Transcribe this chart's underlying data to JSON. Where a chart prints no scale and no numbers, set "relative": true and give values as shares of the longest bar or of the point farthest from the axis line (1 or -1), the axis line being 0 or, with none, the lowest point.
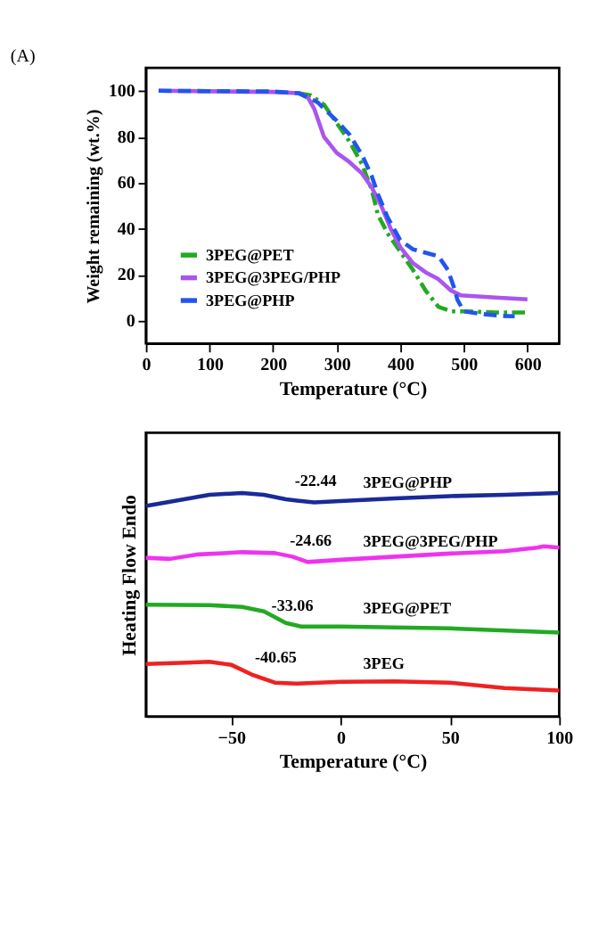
{
  "chart_data": [
    {
      "type": "line",
      "title": "(A)",
      "xlabel": "Temperature (°C)",
      "ylabel": "Weight remaining (wt.%)",
      "xlim": [
        0,
        650
      ],
      "xticks": [
        0,
        100,
        200,
        300,
        400,
        500,
        600
      ],
      "ylim": [
        -10,
        110
      ],
      "yticks": [
        0,
        20,
        40,
        60,
        80,
        100
      ],
      "legend": "bottom left",
      "grid": false,
      "series": [
        {
          "name": "3PEG@PET",
          "color": "#22aa22",
          "line_style": "dashdot",
          "x": [
            240,
            260,
            280,
            300,
            320,
            340,
            355,
            365,
            380,
            400,
            420,
            440,
            460,
            480,
            500,
            550,
            600
          ],
          "values": [
            99,
            98,
            94,
            86,
            78,
            68,
            57,
            46,
            38,
            30,
            22,
            13,
            6,
            4,
            4,
            3.5,
            3.5
          ]
        },
        {
          "name": "3PEG@3PEG/PHP",
          "color": "#aa55ee",
          "line_style": "solid",
          "x": [
            20,
            200,
            240,
            255,
            265,
            280,
            300,
            320,
            340,
            355,
            370,
            385,
            400,
            420,
            440,
            460,
            480,
            495,
            550,
            600
          ],
          "values": [
            100,
            99.5,
            99,
            97,
            92,
            80,
            73,
            69,
            64,
            58,
            50,
            40,
            32,
            25,
            21,
            18,
            13,
            11,
            10,
            9.2
          ]
        },
        {
          "name": "3PEG@PHP",
          "color": "#2255ee",
          "line_style": "dashed",
          "x": [
            20,
            200,
            240,
            270,
            300,
            320,
            340,
            355,
            365,
            380,
            400,
            420,
            440,
            460,
            475,
            485,
            490,
            500,
            530,
            560,
            580
          ],
          "values": [
            100,
            99.7,
            99,
            95,
            87,
            81,
            72,
            63,
            55,
            45,
            35,
            31,
            29.5,
            28,
            22,
            14,
            9,
            4,
            2.8,
            2,
            1.8
          ]
        }
      ]
    },
    {
      "type": "line",
      "relative": true,
      "xlabel": "Temperature (°C)",
      "ylabel": "Heating Flow Endo",
      "xlim": [
        -89,
        100
      ],
      "xticks": [
        -50,
        0,
        50,
        100
      ],
      "legend": false,
      "grid": false,
      "annotations": [
        {
          "text": "-22.44",
          "x": -22.44,
          "y": 0.99
        },
        {
          "text": "-24.66",
          "x": -24.66,
          "y": 0.72
        },
        {
          "text": "-33.06",
          "x": -33.06,
          "y": 0.43
        },
        {
          "text": "-40.65",
          "x": -40.65,
          "y": 0.2
        }
      ],
      "series": [
        {
          "name": "3PEG@PHP",
          "color": "#1a2a99",
          "x": [
            -89,
            -75,
            -60,
            -45,
            -35,
            -25,
            -20,
            -12,
            0,
            25,
            50,
            75,
            100
          ],
          "values": [
            0.942,
            0.966,
            0.992,
            1.0,
            0.992,
            0.972,
            0.966,
            0.958,
            0.964,
            0.976,
            0.986,
            0.992,
            1.0
          ]
        },
        {
          "name": "3PEG@3PEG/PHP",
          "color": "#ee33ee",
          "x": [
            -89,
            -78,
            -65,
            -45,
            -30,
            -22,
            -15,
            0,
            25,
            50,
            75,
            90,
            93,
            100
          ],
          "values": [
            0.71,
            0.705,
            0.725,
            0.735,
            0.731,
            0.715,
            0.691,
            0.701,
            0.715,
            0.729,
            0.739,
            0.755,
            0.761,
            0.755
          ]
        },
        {
          "name": "3PEG@PET",
          "color": "#22aa22",
          "x": [
            -89,
            -60,
            -45,
            -35,
            -25,
            -18,
            0,
            50,
            100
          ],
          "values": [
            0.5,
            0.498,
            0.49,
            0.47,
            0.418,
            0.402,
            0.402,
            0.394,
            0.375
          ]
        },
        {
          "name": "3PEG",
          "color": "#ee2222",
          "x": [
            -89,
            -70,
            -60,
            -50,
            -40,
            -30,
            -20,
            0,
            25,
            50,
            75,
            100
          ],
          "values": [
            0.235,
            0.241,
            0.245,
            0.231,
            0.185,
            0.151,
            0.147,
            0.155,
            0.157,
            0.151,
            0.127,
            0.116
          ]
        }
      ]
    }
  ]
}
